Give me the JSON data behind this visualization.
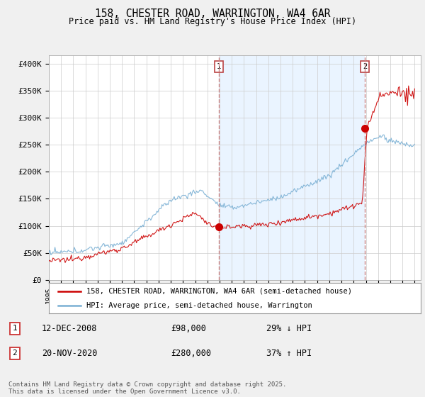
{
  "title": "158, CHESTER ROAD, WARRINGTON, WA4 6AR",
  "subtitle": "Price paid vs. HM Land Registry's House Price Index (HPI)",
  "ylabel_ticks": [
    "£0",
    "£50K",
    "£100K",
    "£150K",
    "£200K",
    "£250K",
    "£300K",
    "£350K",
    "£400K"
  ],
  "ytick_values": [
    0,
    50000,
    100000,
    150000,
    200000,
    250000,
    300000,
    350000,
    400000
  ],
  "ylim": [
    0,
    415000
  ],
  "xlim_start": 1995,
  "xlim_end": 2025.5,
  "red_color": "#cc0000",
  "blue_color": "#7ab0d4",
  "dashed_color": "#cc8888",
  "shade_color": "#ddeeff",
  "marker1_date": 2008.95,
  "marker1_price": 98000,
  "marker2_date": 2020.92,
  "marker2_price": 280000,
  "legend1": "158, CHESTER ROAD, WARRINGTON, WA4 6AR (semi-detached house)",
  "legend2": "HPI: Average price, semi-detached house, Warrington",
  "note1_date": "12-DEC-2008",
  "note1_price": "£98,000",
  "note1_hpi": "29% ↓ HPI",
  "note2_date": "20-NOV-2020",
  "note2_price": "£280,000",
  "note2_hpi": "37% ↑ HPI",
  "footnote": "Contains HM Land Registry data © Crown copyright and database right 2025.\nThis data is licensed under the Open Government Licence v3.0.",
  "background_color": "#f0f0f0",
  "plot_bg_color": "#ffffff"
}
